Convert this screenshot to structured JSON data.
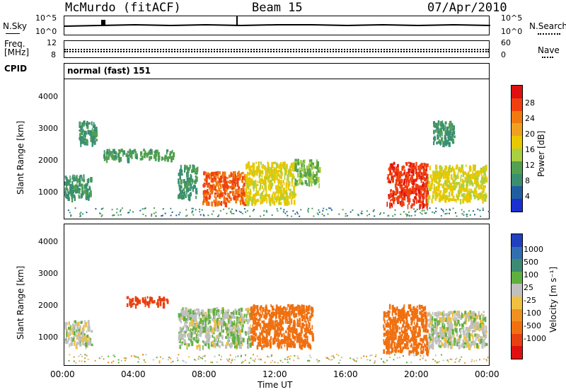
{
  "header": {
    "station": "McMurdo (fitACF)",
    "beam": "Beam 15",
    "date": "07/Apr/2010"
  },
  "top_panel": {
    "left_label_1": "N.Sky",
    "left_label_2": "Freq.",
    "left_label_3": "[MHz]",
    "left_label_4": "CPID",
    "right_label_1": "N.Search",
    "right_label_2": "Nave",
    "sky_ticks": [
      "10^5",
      "10^0"
    ],
    "freq_ticks": [
      "12",
      "8"
    ],
    "search_ticks": [
      "10^5",
      "10^0"
    ],
    "nave_ticks": [
      "60",
      "0"
    ],
    "cpid_text": "normal (fast) 151"
  },
  "power_panel": {
    "ylabel": "Slant Range [km]",
    "yticks": [
      "4000",
      "3000",
      "2000",
      "1000"
    ],
    "cbar_label": "Power [dB]",
    "cbar_ticks": [
      "28",
      "24",
      "20",
      "16",
      "12",
      "8",
      "4"
    ],
    "cbar_colors": [
      "#e01010",
      "#f04010",
      "#f07a10",
      "#f0a020",
      "#e8c800",
      "#a8d040",
      "#52a050",
      "#3a8f70",
      "#1f5fa0",
      "#1a30d0"
    ]
  },
  "velocity_panel": {
    "ylabel": "Slant Range [km]",
    "yticks": [
      "4000",
      "3000",
      "2000",
      "1000"
    ],
    "cbar_label": "Velocity [m s⁻¹]",
    "cbar_ticks": [
      "1000",
      "500",
      "100",
      "25",
      "-25",
      "-100",
      "-500",
      "-1000"
    ],
    "cbar_colors": [
      "#2040c0",
      "#3070b0",
      "#3c8a72",
      "#60b040",
      "#c0c0c0",
      "#f0c040",
      "#f09020",
      "#f07010",
      "#e84010",
      "#e01010"
    ]
  },
  "xaxis": {
    "label": "Time UT",
    "ticks": [
      "00:00",
      "04:00",
      "08:00",
      "12:00",
      "16:00",
      "20:00",
      "00:00"
    ]
  },
  "chart_data": [
    {
      "type": "heatmap",
      "title": "McMurdo (fitACF)",
      "subtitle": "Beam 15",
      "xlabel": "Time UT",
      "ylabel": "Slant Range [km]",
      "xlim": [
        "00:00",
        "24:00"
      ],
      "ylim": [
        180,
        4600
      ],
      "colorbar": {
        "label": "Power [dB]",
        "ticks": [
          28,
          24,
          20,
          16,
          12,
          8,
          4
        ]
      },
      "regions": [
        {
          "t_start": 0.0,
          "t_end": 1.5,
          "range_min": 850,
          "range_max": 1600,
          "value_db": 8
        },
        {
          "t_start": 0.8,
          "t_end": 1.8,
          "range_min": 2600,
          "range_max": 3300,
          "value_db": 8
        },
        {
          "t_start": 2.2,
          "t_end": 6.2,
          "range_min": 2100,
          "range_max": 2400,
          "value_db": 10
        },
        {
          "t_start": 6.4,
          "t_end": 7.5,
          "range_min": 900,
          "range_max": 1900,
          "value_db": 8
        },
        {
          "t_start": 7.8,
          "t_end": 10.2,
          "range_min": 700,
          "range_max": 1700,
          "value_db": 24
        },
        {
          "t_start": 10.2,
          "t_end": 13.0,
          "range_min": 700,
          "range_max": 2000,
          "value_db": 16
        },
        {
          "t_start": 13.0,
          "t_end": 14.4,
          "range_min": 1300,
          "range_max": 2100,
          "value_db": 12
        },
        {
          "t_start": 18.2,
          "t_end": 20.5,
          "range_min": 600,
          "range_max": 2000,
          "value_db": 26
        },
        {
          "t_start": 20.5,
          "t_end": 23.8,
          "range_min": 800,
          "range_max": 1900,
          "value_db": 16
        },
        {
          "t_start": 20.8,
          "t_end": 22.0,
          "range_min": 2600,
          "range_max": 3300,
          "value_db": 8
        }
      ]
    },
    {
      "type": "heatmap",
      "xlabel": "Time UT",
      "ylabel": "Slant Range [km]",
      "xlim": [
        "00:00",
        "24:00"
      ],
      "ylim": [
        180,
        4600
      ],
      "colorbar": {
        "label": "Velocity [m s⁻¹]",
        "ticks": [
          1000,
          500,
          100,
          25,
          -25,
          -100,
          -500,
          -1000
        ]
      },
      "regions": [
        {
          "t_start": 0.0,
          "t_end": 1.5,
          "range_min": 850,
          "range_max": 1600,
          "value_ms": 50
        },
        {
          "t_start": 3.5,
          "t_end": 5.8,
          "range_min": 2100,
          "range_max": 2350,
          "value_ms": -700
        },
        {
          "t_start": 6.4,
          "t_end": 10.5,
          "range_min": 800,
          "range_max": 2000,
          "value_ms": 80
        },
        {
          "t_start": 10.5,
          "t_end": 14.0,
          "range_min": 800,
          "range_max": 2100,
          "value_ms": -200
        },
        {
          "t_start": 18.0,
          "t_end": 20.5,
          "range_min": 600,
          "range_max": 2100,
          "value_ms": -400
        },
        {
          "t_start": 20.5,
          "t_end": 23.8,
          "range_min": 800,
          "range_max": 1900,
          "value_ms": 60
        }
      ]
    }
  ]
}
